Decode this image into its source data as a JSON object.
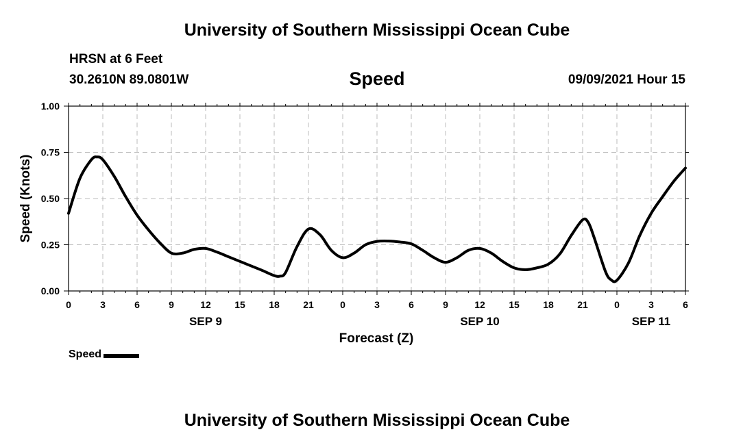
{
  "header": {
    "top_title": "University of Southern Mississippi Ocean Cube",
    "bottom_title": "University of Southern Mississippi Ocean Cube",
    "station": "HRSN at 6 Feet",
    "coords": "30.2610N  89.0801W",
    "variable": "Speed",
    "datetime": "09/09/2021 Hour 15"
  },
  "legend": {
    "label": "Speed",
    "color": "#000000"
  },
  "chart_data": {
    "type": "line",
    "title": "Speed",
    "xlabel": "Forecast (Z)",
    "ylabel": "Speed (Knots)",
    "ylim": [
      0,
      1
    ],
    "xlim": [
      0,
      54
    ],
    "x_unit": "hours since SEP 9 00Z",
    "grid": true,
    "yticks": [
      {
        "value": 0,
        "label": "0.00"
      },
      {
        "value": 0.25,
        "label": "0.25"
      },
      {
        "value": 0.5,
        "label": "0.50"
      },
      {
        "value": 0.75,
        "label": "0.75"
      },
      {
        "value": 1,
        "label": "1.00"
      }
    ],
    "xticks": [
      {
        "value": 0,
        "label": "0"
      },
      {
        "value": 3,
        "label": "3"
      },
      {
        "value": 6,
        "label": "6"
      },
      {
        "value": 9,
        "label": "9"
      },
      {
        "value": 12,
        "label": "12"
      },
      {
        "value": 15,
        "label": "15"
      },
      {
        "value": 18,
        "label": "18"
      },
      {
        "value": 21,
        "label": "21"
      },
      {
        "value": 24,
        "label": "0"
      },
      {
        "value": 27,
        "label": "3"
      },
      {
        "value": 30,
        "label": "6"
      },
      {
        "value": 33,
        "label": "9"
      },
      {
        "value": 36,
        "label": "12"
      },
      {
        "value": 39,
        "label": "15"
      },
      {
        "value": 42,
        "label": "18"
      },
      {
        "value": 45,
        "label": "21"
      },
      {
        "value": 48,
        "label": "0"
      },
      {
        "value": 51,
        "label": "3"
      },
      {
        "value": 54,
        "label": "6"
      }
    ],
    "date_labels": [
      {
        "value": 12,
        "label": "SEP 9"
      },
      {
        "value": 36,
        "label": "SEP 10"
      },
      {
        "value": 51,
        "label": "SEP 11"
      }
    ],
    "series": [
      {
        "name": "Speed",
        "color": "#000000",
        "x": [
          0,
          1,
          2,
          2.5,
          3,
          4,
          5,
          6,
          7,
          8,
          9,
          10,
          11,
          12,
          13,
          14,
          15,
          16,
          17,
          18,
          18.5,
          19,
          20,
          21,
          22,
          23,
          24,
          25,
          26,
          27,
          28,
          29,
          30,
          31,
          32,
          33,
          34,
          35,
          36,
          37,
          38,
          39,
          40,
          41,
          42,
          43,
          44,
          45,
          45.5,
          46,
          47,
          47.5,
          48,
          49,
          50,
          51,
          52,
          53,
          54
        ],
        "values": [
          0.42,
          0.61,
          0.71,
          0.725,
          0.71,
          0.62,
          0.51,
          0.41,
          0.33,
          0.26,
          0.205,
          0.205,
          0.225,
          0.23,
          0.21,
          0.185,
          0.16,
          0.135,
          0.11,
          0.083,
          0.08,
          0.1,
          0.24,
          0.335,
          0.305,
          0.22,
          0.18,
          0.205,
          0.25,
          0.268,
          0.27,
          0.265,
          0.255,
          0.22,
          0.18,
          0.155,
          0.18,
          0.22,
          0.23,
          0.205,
          0.16,
          0.125,
          0.115,
          0.125,
          0.145,
          0.2,
          0.3,
          0.385,
          0.37,
          0.29,
          0.105,
          0.06,
          0.058,
          0.15,
          0.3,
          0.42,
          0.51,
          0.595,
          0.665
        ]
      }
    ]
  }
}
